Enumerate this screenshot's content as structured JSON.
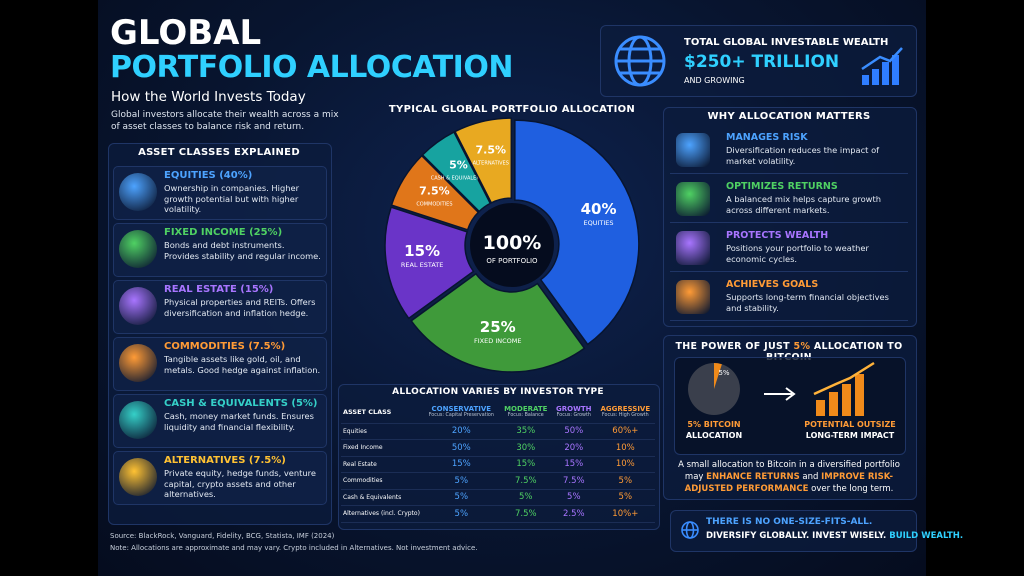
{
  "header": {
    "title": "GLOBAL",
    "title_accent": "PORTFOLIO ALLOCATION",
    "subtitle": "How the World Invests Today",
    "intro": "Global investors allocate their wealth across a mix of asset classes to balance risk and return."
  },
  "wealth": {
    "label": "TOTAL GLOBAL INVESTABLE WEALTH",
    "value": "$250+ TRILLION",
    "note": "AND GROWING"
  },
  "asset_classes": {
    "heading": "ASSET CLASSES EXPLAINED",
    "items": [
      {
        "title": "EQUITIES (40%)",
        "text": "Ownership in companies. Higher growth potential but with higher volatility.",
        "color": "#4da3ff"
      },
      {
        "title": "FIXED INCOME (25%)",
        "text": "Bonds and debt instruments. Provides stability and regular income.",
        "color": "#4fd163"
      },
      {
        "title": "REAL ESTATE (15%)",
        "text": "Physical properties and REITs. Offers diversification and inflation hedge.",
        "color": "#a875ff"
      },
      {
        "title": "COMMODITIES (7.5%)",
        "text": "Tangible assets like gold, oil, and metals. Good hedge against inflation.",
        "color": "#ff9b36"
      },
      {
        "title": "CASH & EQUIVALENTS (5%)",
        "text": "Cash, money market funds. Ensures liquidity and financial flexibility.",
        "color": "#35d0c8"
      },
      {
        "title": "ALTERNATIVES (7.5%)",
        "text": "Private equity, hedge funds, venture capital, crypto assets and other alternatives.",
        "color": "#ffc233"
      }
    ]
  },
  "chart_data": {
    "type": "pie",
    "title": "TYPICAL GLOBAL PORTFOLIO ALLOCATION",
    "center_value": "100%",
    "center_label": "OF PORTFOLIO",
    "categories": [
      "EQUITIES",
      "FIXED INCOME",
      "REAL ESTATE",
      "COMMODITIES",
      "CASH & EQUIVALENTS",
      "ALTERNATIVES"
    ],
    "values": [
      40,
      25,
      15,
      7.5,
      5,
      7.5
    ],
    "value_labels": [
      "40%",
      "25%",
      "15%",
      "7.5%",
      "5%",
      "7.5%"
    ],
    "colors": [
      "#1f5fe0",
      "#3f9a3a",
      "#6a34c8",
      "#e0761a",
      "#17a3a0",
      "#e8a921"
    ]
  },
  "investor_table": {
    "title": "ALLOCATION VARIES BY INVESTOR TYPE",
    "corner": "ASSET CLASS",
    "columns": [
      {
        "name": "CONSERVATIVE",
        "focus": "Focus: Capital Preservation",
        "color": "#4da3ff"
      },
      {
        "name": "MODERATE",
        "focus": "Focus: Balance",
        "color": "#4fd163"
      },
      {
        "name": "GROWTH",
        "focus": "Focus: Growth",
        "color": "#a875ff"
      },
      {
        "name": "AGGRESSIVE",
        "focus": "Focus: High Growth",
        "color": "#ff9b36"
      }
    ],
    "rows": [
      {
        "label": "Equities",
        "cells": [
          "20%",
          "35%",
          "50%",
          "60%+"
        ]
      },
      {
        "label": "Fixed Income",
        "cells": [
          "50%",
          "30%",
          "20%",
          "10%"
        ]
      },
      {
        "label": "Real Estate",
        "cells": [
          "15%",
          "15%",
          "15%",
          "10%"
        ]
      },
      {
        "label": "Commodities",
        "cells": [
          "5%",
          "7.5%",
          "7.5%",
          "5%"
        ]
      },
      {
        "label": "Cash & Equivalents",
        "cells": [
          "5%",
          "5%",
          "5%",
          "5%"
        ]
      },
      {
        "label": "Alternatives (incl. Crypto)",
        "cells": [
          "5%",
          "7.5%",
          "2.5%",
          "10%+"
        ]
      }
    ]
  },
  "why": {
    "heading": "WHY ALLOCATION MATTERS",
    "items": [
      {
        "title": "MANAGES RISK",
        "text": "Diversification reduces the impact of market volatility.",
        "color": "#4da3ff"
      },
      {
        "title": "OPTIMIZES RETURNS",
        "text": "A balanced mix helps capture growth across different markets.",
        "color": "#4fd163"
      },
      {
        "title": "PROTECTS WEALTH",
        "text": "Positions your portfolio to weather economic cycles.",
        "color": "#a875ff"
      },
      {
        "title": "ACHIEVES GOALS",
        "text": "Supports long-term financial objectives and stability.",
        "color": "#ff9b36"
      }
    ]
  },
  "bitcoin": {
    "title_start": "THE POWER OF JUST",
    "title_highlight": "5%",
    "title_end": "ALLOCATION TO BITCOIN",
    "pie_label": "5%",
    "left_caption": [
      "5% BITCOIN",
      "ALLOCATION"
    ],
    "right_caption": [
      "POTENTIAL OUTSIZE",
      "LONG-TERM IMPACT"
    ],
    "body": [
      "A small allocation to Bitcoin in a diversified portfolio may",
      "ENHANCE RETURNS",
      "and",
      "IMPROVE RISK-ADJUSTED PERFORMANCE",
      "over the long term."
    ]
  },
  "callout": {
    "line1": "THERE IS NO ONE-SIZE-FITS-ALL.",
    "line2": "DIVERSIFY GLOBALLY. INVEST WISELY.",
    "highlight": "BUILD WEALTH."
  },
  "footer": {
    "sources": "Source: BlackRock, Vanguard, Fidelity, BCG, Statista, IMF (2024)",
    "note": "Note: Allocations are approximate and may vary. Crypto included in Alternatives. Not investment advice."
  }
}
